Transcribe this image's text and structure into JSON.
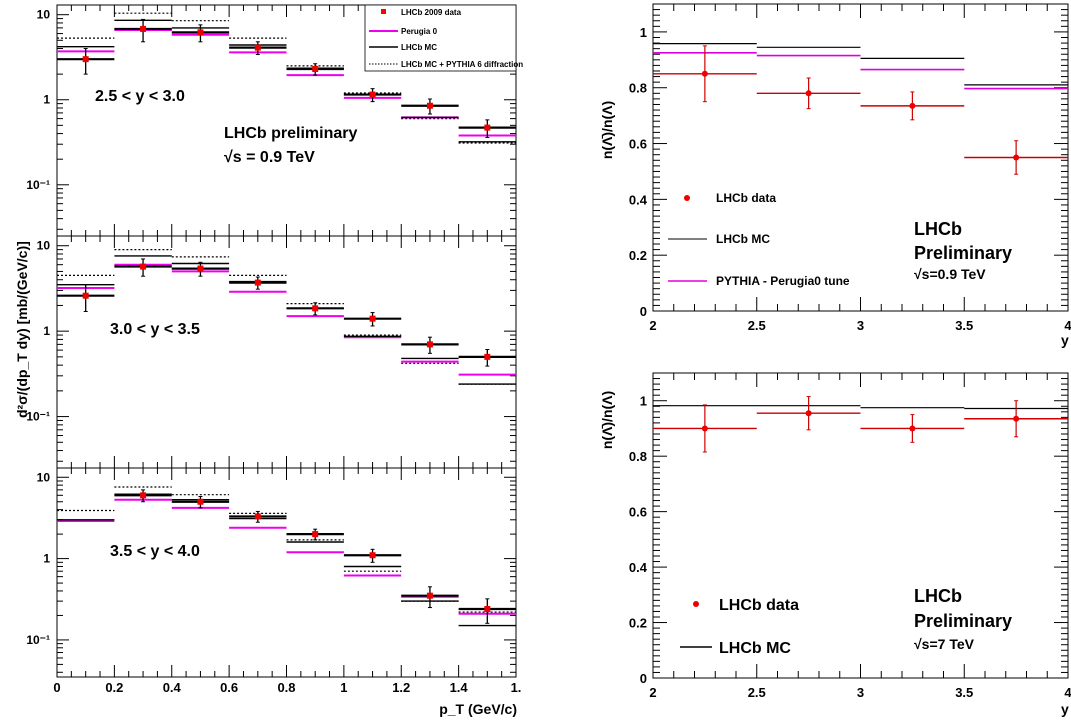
{
  "chart_data": [
    {
      "type": "line",
      "panel": "cross-section",
      "ylabel": "d²σ/(dp_T dy)   [mb/(GeV/c)]",
      "xlabel": "p_T (GeV/c)",
      "x_ticks": [
        "0",
        "0.2",
        "0.4",
        "0.6",
        "0.8",
        "1",
        "1.2",
        "1.4",
        "1."
      ],
      "y_ticks": [
        "10",
        "1",
        "10⁻¹"
      ],
      "xlim": [
        0,
        1.6
      ],
      "y_scale": "log",
      "ylim": [
        0.025,
        13
      ],
      "bin_edges": [
        0,
        0.2,
        0.4,
        0.6,
        0.8,
        1.0,
        1.2,
        1.4,
        1.6
      ],
      "annotation": {
        "line1": "LHCb preliminary",
        "line2": "√s = 0.9 TeV"
      },
      "legend": [
        {
          "name": "LHCb 2009 data",
          "style": "marker",
          "color": "#ff0000"
        },
        {
          "name": "Perugia 0",
          "style": "line",
          "color": "#ee00ee"
        },
        {
          "name": "LHCb MC",
          "style": "line",
          "color": "#000000"
        },
        {
          "name": "LHCb MC + PYTHIA 6 diffraction",
          "style": "dotted",
          "color": "#000000"
        }
      ],
      "subpanels": [
        {
          "label": "2.5 < y < 3.0",
          "data": {
            "x": [
              0.1,
              0.3,
              0.5,
              0.7,
              0.9,
              1.1,
              1.3,
              1.5
            ],
            "y": [
              3.0,
              6.8,
              6.2,
              4.1,
              2.3,
              1.15,
              0.85,
              0.47
            ],
            "yerr": [
              1.0,
              2.0,
              1.4,
              0.7,
              0.35,
              0.2,
              0.17,
              0.11
            ]
          },
          "perugia0": [
            3.7,
            6.6,
            5.8,
            3.6,
            1.95,
            1.05,
            0.62,
            0.38
          ],
          "lhcb_mc": [
            4.2,
            8.6,
            7.0,
            4.4,
            2.35,
            1.15,
            0.62,
            0.32
          ],
          "lhcb_mc_diffraction": [
            5.3,
            10.4,
            8.5,
            5.3,
            2.5,
            1.2,
            0.6,
            0.31
          ]
        },
        {
          "label": "3.0 < y < 3.5",
          "data": {
            "x": [
              0.1,
              0.3,
              0.5,
              0.7,
              0.9,
              1.1,
              1.3,
              1.5
            ],
            "y": [
              2.6,
              5.7,
              5.4,
              3.7,
              1.85,
              1.4,
              0.7,
              0.5
            ],
            "yerr": [
              0.9,
              1.3,
              1.0,
              0.6,
              0.3,
              0.25,
              0.15,
              0.11
            ]
          },
          "perugia0": [
            3.2,
            6.0,
            5.0,
            2.9,
            1.5,
            0.85,
            0.44,
            0.31
          ],
          "lhcb_mc": [
            3.5,
            7.6,
            6.2,
            3.8,
            1.85,
            0.87,
            0.48,
            0.24
          ],
          "lhcb_mc_diffraction": [
            4.5,
            9.0,
            7.4,
            4.5,
            2.1,
            0.9,
            0.42,
            0.24
          ]
        },
        {
          "label": "3.5 < y < 4.0",
          "data": {
            "x": [
              0.1,
              0.3,
              0.5,
              0.7,
              0.9,
              1.1,
              1.3,
              1.5
            ],
            "y": [
              0,
              6.0,
              5.0,
              3.3,
              2.0,
              1.1,
              0.35,
              0.24
            ],
            "yerr": [
              0,
              1.0,
              0.8,
              0.5,
              0.3,
              0.2,
              0.1,
              0.08
            ]
          },
          "perugia0": [
            2.9,
            5.3,
            4.2,
            2.4,
            1.2,
            0.62,
            0.34,
            0.21
          ],
          "lhcb_mc": [
            3.0,
            6.2,
            5.3,
            3.1,
            1.6,
            0.8,
            0.3,
            0.15
          ],
          "lhcb_mc_diffraction": [
            3.9,
            7.6,
            6.1,
            3.6,
            1.7,
            0.7,
            0.3,
            0.22
          ]
        }
      ]
    },
    {
      "type": "line",
      "panel": "ratio-0.9TeV",
      "ylabel": "n(Λ̄)/n(Λ)",
      "xlabel": "y",
      "x_ticks": [
        "2",
        "2.5",
        "3",
        "3.5",
        "4"
      ],
      "y_ticks": [
        "0",
        "0.2",
        "0.4",
        "0.6",
        "0.8",
        "1"
      ],
      "xlim": [
        2,
        4
      ],
      "ylim": [
        0,
        1.1
      ],
      "bin_edges": [
        2,
        2.5,
        3,
        3.5,
        4
      ],
      "annotation": {
        "line1": "LHCb",
        "line2": "Preliminary",
        "line3": "√s=0.9 TeV"
      },
      "legend": [
        {
          "name": "LHCb data",
          "style": "marker",
          "color": "#ee0000"
        },
        {
          "name": "LHCb MC",
          "style": "line",
          "color": "#000000"
        },
        {
          "name": "PYTHIA - Perugia0 tune",
          "style": "line",
          "color": "#dd00dd"
        }
      ],
      "data": {
        "x": [
          2.25,
          2.75,
          3.25,
          3.75
        ],
        "y": [
          0.85,
          0.78,
          0.735,
          0.55
        ],
        "yerr": [
          0.1,
          0.055,
          0.05,
          0.06
        ]
      },
      "lhcb_mc": [
        0.958,
        0.945,
        0.905,
        0.81
      ],
      "perugia0": [
        0.925,
        0.915,
        0.865,
        0.797
      ]
    },
    {
      "type": "line",
      "panel": "ratio-7TeV",
      "ylabel": "n(Λ̄)/n(Λ)",
      "xlabel": "y",
      "x_ticks": [
        "2",
        "2.5",
        "3",
        "3.5",
        "4"
      ],
      "y_ticks": [
        "0",
        "0.2",
        "0.4",
        "0.6",
        "0.8",
        "1"
      ],
      "xlim": [
        2,
        4
      ],
      "ylim": [
        0,
        1.1
      ],
      "bin_edges": [
        2,
        2.5,
        3,
        3.5,
        4
      ],
      "annotation": {
        "line1": "LHCb",
        "line2": "Preliminary",
        "line3": "√s=7 TeV"
      },
      "legend": [
        {
          "name": "LHCb data",
          "style": "marker",
          "color": "#ee0000"
        },
        {
          "name": "LHCb MC",
          "style": "line",
          "color": "#000000"
        }
      ],
      "data": {
        "x": [
          2.25,
          2.75,
          3.25,
          3.75
        ],
        "y": [
          0.9,
          0.955,
          0.9,
          0.935
        ],
        "yerr": [
          0.085,
          0.06,
          0.05,
          0.065
        ]
      },
      "lhcb_mc": [
        0.982,
        0.982,
        0.975,
        0.972
      ]
    }
  ]
}
